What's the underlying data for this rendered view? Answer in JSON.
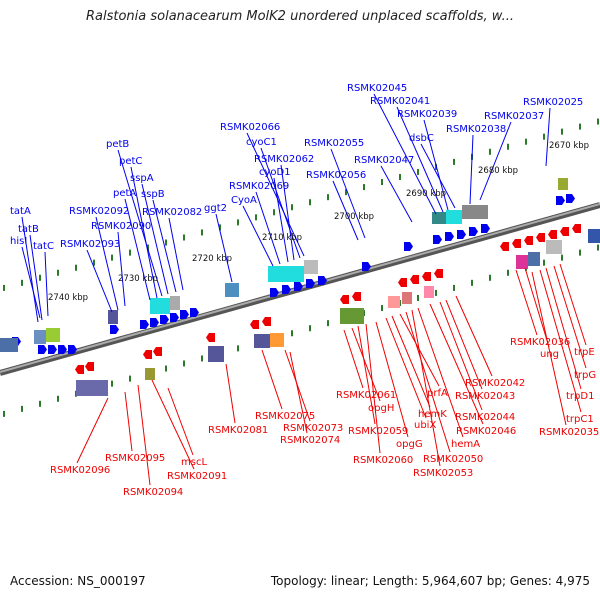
{
  "title": "Ralstonia solanacearum MolK2 unordered unplaced scaffolds, w...",
  "footer": {
    "accession": "Accession: NS_000197",
    "summary": "Topology: linear; Length: 5,964,607 bp; Genes: 4,975"
  },
  "colors": {
    "forward": "#0000ee",
    "reverse": "#ee0000",
    "backbone": "#808080",
    "tick": "#2a7a2a"
  },
  "kbp_ticks": [
    "2740 kbp",
    "2730 kbp",
    "2720 kbp",
    "2710 kbp",
    "2700 kbp",
    "2690 kbp",
    "2680 kbp",
    "2670 kbp"
  ],
  "forward_genes": [
    "tatA",
    "tatB",
    "hisI",
    "tatC",
    "RSMK02093",
    "RSMK02092",
    "RSMK02090",
    "petA",
    "petC",
    "petB",
    "sspA",
    "sspB",
    "RSMK02082",
    "ggt2",
    "CyoA",
    "RSMK02069",
    "cyoD1",
    "RSMK02062",
    "cyoC1",
    "RSMK02066",
    "RSMK02056",
    "RSMK02055",
    "RSMK02047",
    "RSMK02045",
    "RSMK02041",
    "RSMK02039",
    "dsbC",
    "RSMK02038",
    "RSMK02037",
    "RSMK02025"
  ],
  "reverse_genes": [
    "RSMK02096",
    "RSMK02095",
    "RSMK02094",
    "RSMK02091",
    "mscL",
    "RSMK02081",
    "RSMK02075",
    "RSMK02073",
    "RSMK02074",
    "RSMK02061",
    "opgH",
    "RSMK02059",
    "RSMK02060",
    "opgG",
    "ubiX",
    "hemK",
    "prfA",
    "RSMK02050",
    "RSMK02053",
    "hemA",
    "RSMK02046",
    "RSMK02044",
    "RSMK02043",
    "RSMK02042",
    "RSMK02036",
    "ung",
    "trpE",
    "trpG",
    "trpD1",
    "trpC1",
    "RSMK02035"
  ]
}
